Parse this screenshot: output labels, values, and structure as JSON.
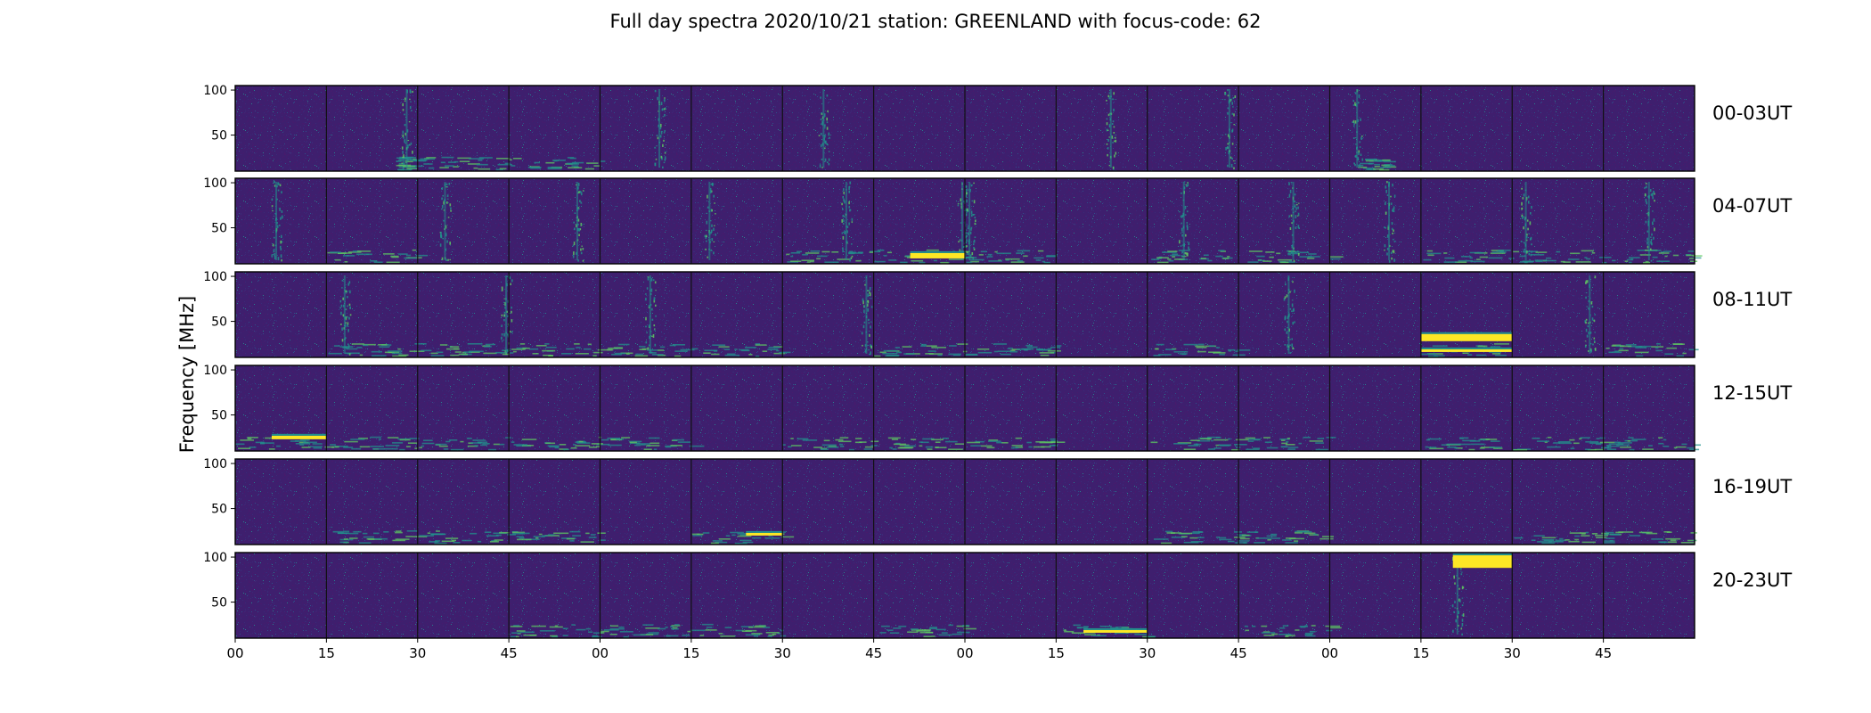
{
  "title": "Full day spectra 2020/10/21 station: GREENLAND with focus-code: 62",
  "chart_data": {
    "type": "heatmap",
    "title": "Full day spectra 2020/10/21 station: GREENLAND with focus-code: 62",
    "ylabel": "Frequency [MHz]",
    "xlabel": "",
    "ylim": [
      10,
      105
    ],
    "yticks": [
      50,
      100
    ],
    "xtick_labels": [
      "00",
      "15",
      "30",
      "45",
      "00",
      "15",
      "30",
      "45",
      "00",
      "15",
      "30",
      "45",
      "00",
      "15",
      "30",
      "45"
    ],
    "panels_per_row": 16,
    "minutes_per_panel": 15,
    "rows": [
      {
        "label": "00-03UT"
      },
      {
        "label": "04-07UT"
      },
      {
        "label": "08-11UT"
      },
      {
        "label": "12-15UT"
      },
      {
        "label": "16-19UT"
      },
      {
        "label": "20-23UT"
      }
    ],
    "colormap": [
      "#440154",
      "#3b528b",
      "#21918c",
      "#5ec962",
      "#fde725"
    ],
    "background_color": "#3e1f6e",
    "features": {
      "vertical_bursts": [
        [
          0,
          1,
          0.88
        ],
        [
          0,
          4,
          0.65
        ],
        [
          0,
          6,
          0.45
        ],
        [
          0,
          9,
          0.6
        ],
        [
          0,
          10,
          0.9
        ],
        [
          0,
          12,
          0.3
        ],
        [
          1,
          0,
          0.45
        ],
        [
          1,
          2,
          0.3
        ],
        [
          1,
          3,
          0.75
        ],
        [
          1,
          5,
          0.2
        ],
        [
          1,
          6,
          0.7
        ],
        [
          1,
          7,
          0.97
        ],
        [
          1,
          8,
          0.05
        ],
        [
          1,
          10,
          0.4
        ],
        [
          1,
          11,
          0.6
        ],
        [
          1,
          12,
          0.65
        ],
        [
          1,
          14,
          0.15
        ],
        [
          1,
          15,
          0.5
        ],
        [
          2,
          1,
          0.2
        ],
        [
          2,
          2,
          0.97
        ],
        [
          2,
          4,
          0.55
        ],
        [
          2,
          6,
          0.92
        ],
        [
          2,
          11,
          0.55
        ],
        [
          2,
          14,
          0.85
        ],
        [
          5,
          13,
          0.4
        ]
      ],
      "low_freq_bands": [
        [
          0,
          1,
          0.75,
          0.95
        ],
        [
          0,
          2,
          0.0,
          1.0
        ],
        [
          0,
          3,
          0.0,
          1.0
        ],
        [
          0,
          12,
          0.3,
          0.6
        ],
        [
          1,
          1,
          0.0,
          1.0
        ],
        [
          1,
          6,
          0.0,
          1.0
        ],
        [
          1,
          7,
          0.0,
          1.0
        ],
        [
          1,
          8,
          0.0,
          1.0
        ],
        [
          1,
          10,
          0.0,
          1.0
        ],
        [
          1,
          11,
          0.0,
          1.0
        ],
        [
          1,
          13,
          0.0,
          1.0
        ],
        [
          1,
          14,
          0.0,
          1.0
        ],
        [
          1,
          15,
          0.0,
          1.0
        ],
        [
          2,
          1,
          0.0,
          1.0
        ],
        [
          2,
          2,
          0.0,
          1.0
        ],
        [
          2,
          3,
          0.0,
          1.0
        ],
        [
          2,
          4,
          0.0,
          1.0
        ],
        [
          2,
          5,
          0.0,
          1.0
        ],
        [
          2,
          7,
          0.0,
          1.0
        ],
        [
          2,
          8,
          0.0,
          1.0
        ],
        [
          2,
          10,
          0.0,
          1.0
        ],
        [
          2,
          13,
          0.0,
          1.0
        ],
        [
          2,
          15,
          0.0,
          1.0
        ],
        [
          3,
          0,
          0.0,
          1.0
        ],
        [
          3,
          1,
          0.0,
          1.0
        ],
        [
          3,
          2,
          0.0,
          1.0
        ],
        [
          3,
          3,
          0.0,
          1.0
        ],
        [
          3,
          4,
          0.0,
          1.0
        ],
        [
          3,
          6,
          0.0,
          1.0
        ],
        [
          3,
          7,
          0.0,
          1.0
        ],
        [
          3,
          8,
          0.0,
          1.0
        ],
        [
          3,
          10,
          0.0,
          1.0
        ],
        [
          3,
          11,
          0.0,
          1.0
        ],
        [
          3,
          13,
          0.0,
          1.0
        ],
        [
          3,
          14,
          0.0,
          1.0
        ],
        [
          3,
          15,
          0.0,
          1.0
        ],
        [
          4,
          1,
          0.0,
          1.0
        ],
        [
          4,
          2,
          0.0,
          1.0
        ],
        [
          4,
          3,
          0.0,
          1.0
        ],
        [
          4,
          5,
          0.0,
          1.0
        ],
        [
          4,
          10,
          0.0,
          1.0
        ],
        [
          4,
          11,
          0.0,
          1.0
        ],
        [
          4,
          14,
          0.0,
          1.0
        ],
        [
          4,
          15,
          0.0,
          1.0
        ],
        [
          5,
          3,
          0.0,
          1.0
        ],
        [
          5,
          4,
          0.0,
          1.0
        ],
        [
          5,
          5,
          0.0,
          1.0
        ],
        [
          5,
          7,
          0.0,
          1.0
        ],
        [
          5,
          9,
          0.0,
          1.0
        ],
        [
          5,
          11,
          0.0,
          1.0
        ]
      ],
      "bright_bands": [
        [
          1,
          7,
          0.4,
          1.0,
          16,
          22
        ],
        [
          2,
          13,
          0.0,
          1.0,
          28,
          36
        ],
        [
          2,
          13,
          0.0,
          1.0,
          16,
          19
        ],
        [
          3,
          0,
          0.4,
          1.0,
          23,
          27
        ],
        [
          4,
          5,
          0.6,
          1.0,
          20,
          23
        ],
        [
          5,
          9,
          0.3,
          1.0,
          16,
          19
        ],
        [
          5,
          13,
          0.35,
          1.0,
          88,
          102
        ]
      ]
    }
  }
}
